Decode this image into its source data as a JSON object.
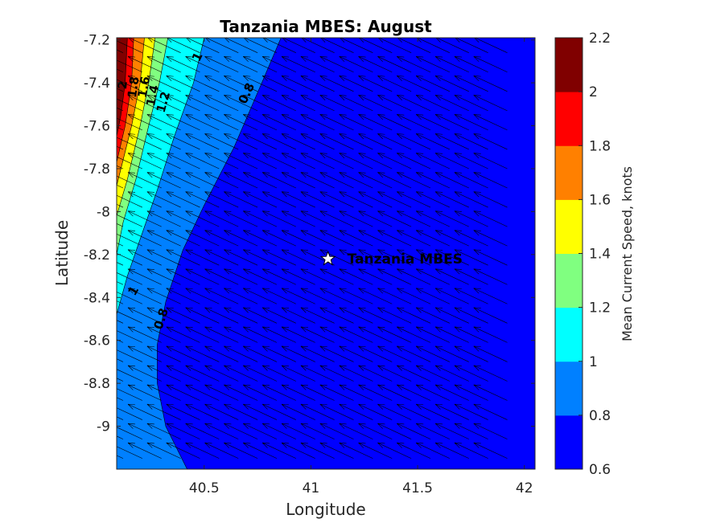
{
  "chart_data": {
    "type": "contourf-quiver",
    "title": "Tanzania MBES: August",
    "xlabel": "Longitude",
    "ylabel": "Latitude",
    "xlim": [
      40.09,
      42.05
    ],
    "ylim": [
      -9.2,
      -7.19
    ],
    "x_ticks": [
      40.5,
      41,
      41.5,
      42
    ],
    "x_tick_labels": [
      "40.5",
      "41",
      "41.5",
      "42"
    ],
    "y_ticks": [
      -7.2,
      -7.4,
      -7.6,
      -7.8,
      -8,
      -8.2,
      -8.4,
      -8.6,
      -8.8,
      -9
    ],
    "y_tick_labels": [
      "-7.2",
      "-7.4",
      "-7.6",
      "-7.8",
      "-8",
      "-8.2",
      "-8.4",
      "-8.6",
      "-8.8",
      "-9"
    ],
    "levels": [
      0.6,
      0.8,
      1,
      1.2,
      1.4,
      1.6,
      1.8,
      2,
      2.2
    ],
    "level_colors": [
      "#0000ff",
      "#0080ff",
      "#00ffff",
      "#80ff80",
      "#ffff00",
      "#ff8000",
      "#ff0000",
      "#800000"
    ],
    "colorbar_label": "Mean Current Speed, knots",
    "colorbar_ticks": [
      "0.6",
      "0.8",
      "1",
      "1.2",
      "1.4",
      "1.6",
      "1.8",
      "2",
      "2.2"
    ],
    "contour_lines": [
      {
        "level": 0.8,
        "points": [
          [
            40.86,
            -7.19
          ],
          [
            40.77,
            -7.4
          ],
          [
            40.64,
            -7.7
          ],
          [
            40.5,
            -7.97
          ],
          [
            40.4,
            -8.18
          ],
          [
            40.32,
            -8.42
          ],
          [
            40.28,
            -8.62
          ],
          [
            40.28,
            -8.8
          ],
          [
            40.32,
            -9.0
          ],
          [
            40.42,
            -9.2
          ]
        ]
      },
      {
        "level": 1.0,
        "points": [
          [
            40.5,
            -7.19
          ],
          [
            40.45,
            -7.4
          ],
          [
            40.36,
            -7.65
          ],
          [
            40.28,
            -7.9
          ],
          [
            40.21,
            -8.1
          ],
          [
            40.14,
            -8.3
          ],
          [
            40.09,
            -8.48
          ]
        ]
      },
      {
        "level": 1.2,
        "points": [
          [
            40.33,
            -7.19
          ],
          [
            40.29,
            -7.4
          ],
          [
            40.24,
            -7.6
          ],
          [
            40.18,
            -7.85
          ],
          [
            40.12,
            -8.05
          ],
          [
            40.09,
            -8.2
          ]
        ]
      },
      {
        "level": 1.4,
        "points": [
          [
            40.27,
            -7.19
          ],
          [
            40.24,
            -7.4
          ],
          [
            40.2,
            -7.6
          ],
          [
            40.14,
            -7.85
          ],
          [
            40.09,
            -8.02
          ]
        ]
      },
      {
        "level": 1.6,
        "points": [
          [
            40.22,
            -7.19
          ],
          [
            40.2,
            -7.4
          ],
          [
            40.16,
            -7.6
          ],
          [
            40.11,
            -7.8
          ],
          [
            40.09,
            -7.88
          ]
        ]
      },
      {
        "level": 1.8,
        "points": [
          [
            40.17,
            -7.19
          ],
          [
            40.16,
            -7.4
          ],
          [
            40.13,
            -7.6
          ],
          [
            40.09,
            -7.77
          ]
        ]
      },
      {
        "level": 2.0,
        "points": [
          [
            40.14,
            -7.19
          ],
          [
            40.13,
            -7.4
          ],
          [
            40.11,
            -7.55
          ],
          [
            40.09,
            -7.65
          ]
        ]
      }
    ],
    "contour_labels": [
      {
        "text": "0.8",
        "x": 40.7,
        "y": -7.45,
        "angle": -65
      },
      {
        "text": "0.8",
        "x": 40.3,
        "y": -8.5,
        "angle": -72
      },
      {
        "text": "1",
        "x": 40.47,
        "y": -7.28,
        "angle": -65
      },
      {
        "text": "1",
        "x": 40.17,
        "y": -8.37,
        "angle": -60
      },
      {
        "text": "1.2",
        "x": 40.31,
        "y": -7.49,
        "angle": -75
      },
      {
        "text": "1.4",
        "x": 40.26,
        "y": -7.46,
        "angle": -78
      },
      {
        "text": "1.6",
        "x": 40.22,
        "y": -7.42,
        "angle": -80
      },
      {
        "text": "1.8",
        "x": 40.17,
        "y": -7.42,
        "angle": -82
      },
      {
        "text": "2",
        "x": 40.12,
        "y": -7.41,
        "angle": -84
      }
    ],
    "vector_field": {
      "description": "mean current vectors, flow toward the northwest",
      "lon_range": [
        40.12,
        42.0
      ],
      "lat_range": [
        -9.15,
        -7.22
      ],
      "spacing_deg": 0.09,
      "direction_deg": 155
    },
    "site": {
      "name": "Tanzania MBES",
      "lon": 41.08,
      "lat": -8.22
    }
  }
}
